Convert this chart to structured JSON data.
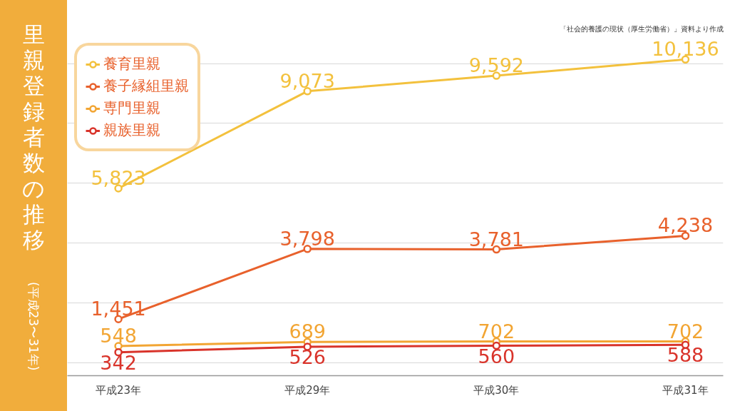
{
  "chart_data": {
    "type": "line",
    "title": "里親登録者数の推移",
    "subtitle": "(平成23〜31年)",
    "annotations": [
      "「社会的養護の現状（厚生労働省）」資料より作成"
    ],
    "categories": [
      "平成23年",
      "平成29年",
      "平成30年",
      "平成31年"
    ],
    "series": [
      {
        "name": "養育里親",
        "color": "#f3c13d",
        "values": [
          5823,
          9073,
          9592,
          10136
        ],
        "value_labels": [
          "5,823",
          "9,073",
          "9,592",
          "10,136"
        ]
      },
      {
        "name": "養子縁組里親",
        "color": "#e8612c",
        "values": [
          1451,
          3798,
          3781,
          4238
        ],
        "value_labels": [
          "1,451",
          "3,798",
          "3,781",
          "4,238"
        ]
      },
      {
        "name": "専門里親",
        "color": "#f2a533",
        "values": [
          548,
          689,
          702,
          702
        ],
        "value_labels": [
          "548",
          "689",
          "702",
          "702"
        ]
      },
      {
        "name": "親族里親",
        "color": "#d9342b",
        "values": [
          342,
          526,
          560,
          588
        ],
        "value_labels": [
          "342",
          "526",
          "560",
          "588"
        ]
      }
    ],
    "grid": "y",
    "tick_labels": "x",
    "legend": "top left",
    "marker": "circle",
    "line_style": "solid"
  }
}
